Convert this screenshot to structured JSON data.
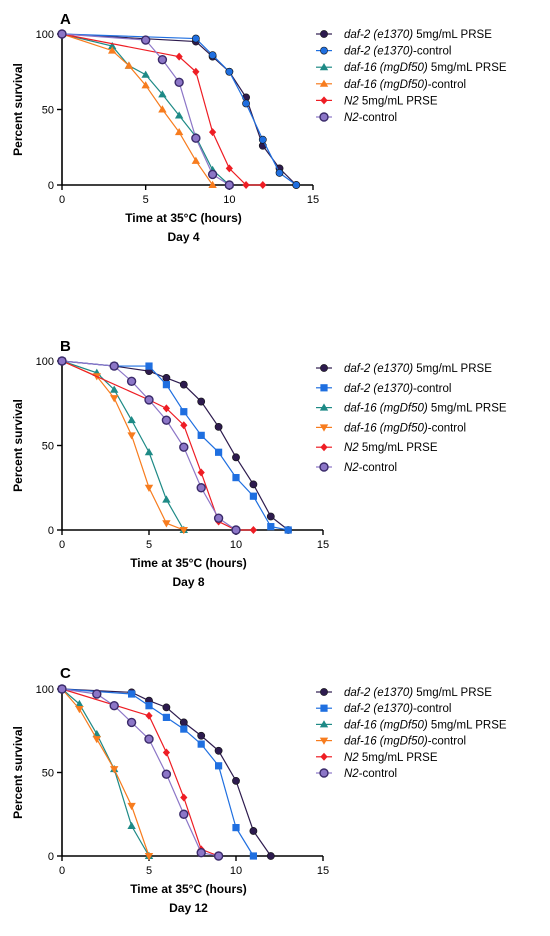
{
  "chart_data": [
    {
      "type": "line",
      "panel": "A",
      "xlabel": "Time at 35°C (hours)",
      "sublabel": "Day 4",
      "ylabel": "Percent survival",
      "xlim": [
        0,
        15
      ],
      "ylim": [
        0,
        100
      ],
      "xticks": [
        0,
        5,
        10,
        15
      ],
      "yticks": [
        0,
        50,
        100
      ],
      "legend_position": "right",
      "series": [
        {
          "name_italic": "daf-2 (e1370)",
          "name_rest": " 5mg/mL PRSE",
          "color": "#2d1b4e",
          "marker": "circle",
          "points": [
            [
              0,
              100
            ],
            [
              8,
              95
            ],
            [
              9,
              85
            ],
            [
              10,
              75
            ],
            [
              11,
              58
            ],
            [
              12,
              26
            ],
            [
              13,
              11
            ],
            [
              14,
              0
            ]
          ]
        },
        {
          "name_italic": "daf-2 (e1370)",
          "name_rest": "-control",
          "color": "#1f6fe0",
          "marker": "circle",
          "points": [
            [
              0,
              100
            ],
            [
              8,
              97
            ],
            [
              9,
              86
            ],
            [
              10,
              75
            ],
            [
              11,
              54
            ],
            [
              12,
              30
            ],
            [
              13,
              8
            ],
            [
              14,
              0
            ]
          ]
        },
        {
          "name_italic": "daf-16 (mgDf50)",
          "name_rest": " 5mg/mL PRSE",
          "color": "#1e8a86",
          "marker": "triangle",
          "points": [
            [
              0,
              100
            ],
            [
              3,
              92
            ],
            [
              4,
              79
            ],
            [
              5,
              73
            ],
            [
              6,
              60
            ],
            [
              7,
              46
            ],
            [
              8,
              32
            ],
            [
              9,
              10
            ],
            [
              10,
              0
            ]
          ]
        },
        {
          "name_italic": "daf-16 (mgDf50)",
          "name_rest": "-control",
          "color": "#f77c1e",
          "marker": "triangle",
          "points": [
            [
              0,
              100
            ],
            [
              3,
              89
            ],
            [
              4,
              79
            ],
            [
              5,
              66
            ],
            [
              6,
              50
            ],
            [
              7,
              35
            ],
            [
              8,
              16
            ],
            [
              9,
              0
            ]
          ]
        },
        {
          "name_italic": "N2",
          "name_rest": " 5mg/mL PRSE",
          "color": "#ee1d24",
          "marker": "diamond",
          "points": [
            [
              0,
              100
            ],
            [
              7,
              85
            ],
            [
              8,
              75
            ],
            [
              9,
              35
            ],
            [
              10,
              11
            ],
            [
              11,
              0
            ],
            [
              12,
              0
            ]
          ]
        },
        {
          "name_italic": "N2",
          "name_rest": "-control",
          "color": "#8c76c7",
          "marker": "circle-open",
          "points": [
            [
              0,
              100
            ],
            [
              5,
              96
            ],
            [
              6,
              83
            ],
            [
              7,
              68
            ],
            [
              8,
              31
            ],
            [
              9,
              7
            ],
            [
              10,
              0
            ]
          ]
        }
      ]
    },
    {
      "type": "line",
      "panel": "B",
      "xlabel": "Time at 35°C (hours)",
      "sublabel": "Day 8",
      "ylabel": "Percent survival",
      "xlim": [
        0,
        15
      ],
      "ylim": [
        0,
        100
      ],
      "xticks": [
        0,
        5,
        10,
        15
      ],
      "yticks": [
        0,
        50,
        100
      ],
      "legend_position": "right",
      "series": [
        {
          "name_italic": "daf-2 (e1370)",
          "name_rest": " 5mg/mL PRSE",
          "color": "#2d1b4e",
          "marker": "circle",
          "points": [
            [
              0,
              100
            ],
            [
              3,
              97
            ],
            [
              5,
              94
            ],
            [
              6,
              90
            ],
            [
              7,
              86
            ],
            [
              8,
              76
            ],
            [
              9,
              61
            ],
            [
              10,
              43
            ],
            [
              11,
              27
            ],
            [
              12,
              8
            ],
            [
              13,
              0
            ]
          ]
        },
        {
          "name_italic": "daf-2 (e1370)",
          "name_rest": "-control",
          "color": "#1f6fe0",
          "marker": "square",
          "points": [
            [
              0,
              100
            ],
            [
              3,
              97
            ],
            [
              5,
              97
            ],
            [
              6,
              86
            ],
            [
              7,
              70
            ],
            [
              8,
              56
            ],
            [
              9,
              46
            ],
            [
              10,
              31
            ],
            [
              11,
              20
            ],
            [
              12,
              2
            ],
            [
              13,
              0
            ]
          ]
        },
        {
          "name_italic": "daf-16 (mgDf50)",
          "name_rest": " 5mg/mL PRSE",
          "color": "#1e8a86",
          "marker": "triangle",
          "points": [
            [
              0,
              100
            ],
            [
              2,
              93
            ],
            [
              3,
              83
            ],
            [
              4,
              65
            ],
            [
              5,
              46
            ],
            [
              6,
              18
            ],
            [
              7,
              0
            ]
          ]
        },
        {
          "name_italic": "daf-16 (mgDf50)",
          "name_rest": "-control",
          "color": "#f77c1e",
          "marker": "triangle-down",
          "points": [
            [
              0,
              100
            ],
            [
              2,
              91
            ],
            [
              3,
              78
            ],
            [
              4,
              56
            ],
            [
              5,
              25
            ],
            [
              6,
              4
            ],
            [
              7,
              0
            ]
          ]
        },
        {
          "name_italic": "N2",
          "name_rest": " 5mg/mL PRSE",
          "color": "#ee1d24",
          "marker": "diamond",
          "points": [
            [
              0,
              100
            ],
            [
              5,
              77
            ],
            [
              6,
              72
            ],
            [
              7,
              62
            ],
            [
              8,
              34
            ],
            [
              9,
              5
            ],
            [
              10,
              0
            ],
            [
              11,
              0
            ]
          ]
        },
        {
          "name_italic": "N2",
          "name_rest": "-control",
          "color": "#8c76c7",
          "marker": "circle-open",
          "points": [
            [
              0,
              100
            ],
            [
              3,
              97
            ],
            [
              4,
              88
            ],
            [
              5,
              77
            ],
            [
              6,
              65
            ],
            [
              7,
              49
            ],
            [
              8,
              25
            ],
            [
              9,
              7
            ],
            [
              10,
              0
            ]
          ]
        }
      ]
    },
    {
      "type": "line",
      "panel": "C",
      "xlabel": "Time at 35°C (hours)",
      "sublabel": "Day 12",
      "ylabel": "Percent survival",
      "xlim": [
        0,
        15
      ],
      "ylim": [
        0,
        100
      ],
      "xticks": [
        0,
        5,
        10,
        15
      ],
      "yticks": [
        0,
        50,
        100
      ],
      "legend_position": "right",
      "series": [
        {
          "name_italic": "daf-2 (e1370)",
          "name_rest": " 5mg/mL PRSE",
          "color": "#2d1b4e",
          "marker": "circle",
          "points": [
            [
              0,
              100
            ],
            [
              4,
              98
            ],
            [
              5,
              93
            ],
            [
              6,
              89
            ],
            [
              7,
              80
            ],
            [
              8,
              72
            ],
            [
              9,
              63
            ],
            [
              10,
              45
            ],
            [
              11,
              15
            ],
            [
              12,
              0
            ]
          ]
        },
        {
          "name_italic": "daf-2 (e1370)",
          "name_rest": "-control",
          "color": "#1f6fe0",
          "marker": "square",
          "points": [
            [
              0,
              100
            ],
            [
              4,
              97
            ],
            [
              5,
              90
            ],
            [
              6,
              83
            ],
            [
              7,
              76
            ],
            [
              8,
              67
            ],
            [
              9,
              54
            ],
            [
              10,
              17
            ],
            [
              11,
              0
            ]
          ]
        },
        {
          "name_italic": "daf-16 (mgDf50)",
          "name_rest": " 5mg/mL PRSE",
          "color": "#1e8a86",
          "marker": "triangle",
          "points": [
            [
              0,
              100
            ],
            [
              1,
              91
            ],
            [
              2,
              73
            ],
            [
              3,
              52
            ],
            [
              4,
              18
            ],
            [
              5,
              0
            ]
          ]
        },
        {
          "name_italic": "daf-16 (mgDf50)",
          "name_rest": "-control",
          "color": "#f77c1e",
          "marker": "triangle-down",
          "points": [
            [
              0,
              100
            ],
            [
              1,
              88
            ],
            [
              2,
              70
            ],
            [
              3,
              52
            ],
            [
              4,
              30
            ],
            [
              5,
              0
            ]
          ]
        },
        {
          "name_italic": "N2",
          "name_rest": " 5mg/mL PRSE",
          "color": "#ee1d24",
          "marker": "diamond",
          "points": [
            [
              0,
              100
            ],
            [
              5,
              84
            ],
            [
              6,
              62
            ],
            [
              7,
              35
            ],
            [
              8,
              4
            ],
            [
              9,
              0
            ]
          ]
        },
        {
          "name_italic": "N2",
          "name_rest": "-control",
          "color": "#8c76c7",
          "marker": "circle-open",
          "points": [
            [
              0,
              100
            ],
            [
              2,
              97
            ],
            [
              3,
              90
            ],
            [
              4,
              80
            ],
            [
              5,
              70
            ],
            [
              6,
              49
            ],
            [
              7,
              25
            ],
            [
              8,
              2
            ],
            [
              9,
              0
            ]
          ]
        }
      ]
    }
  ]
}
